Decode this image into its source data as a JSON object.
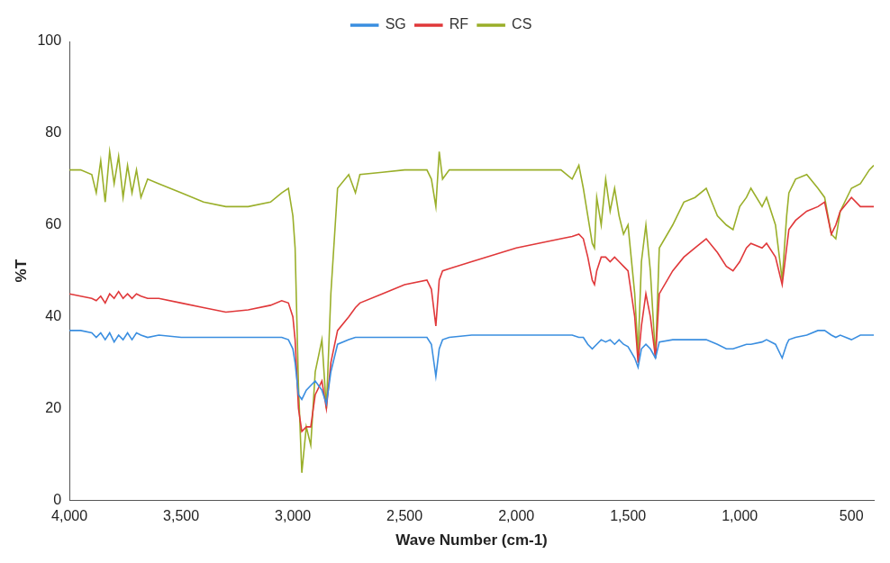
{
  "chart_data": {
    "type": "line",
    "x_label": "Wave Number (cm-1)",
    "y_label": "%T",
    "xlim": [
      4000,
      400
    ],
    "xticks": [
      4000,
      3500,
      3000,
      2500,
      2000,
      1500,
      1000,
      500
    ],
    "ylim": [
      0,
      100
    ],
    "yticks": [
      0,
      20,
      40,
      60,
      80,
      100
    ],
    "grid": false,
    "legend": "top",
    "x": [
      4000,
      3950,
      3900,
      3880,
      3860,
      3840,
      3820,
      3800,
      3780,
      3760,
      3740,
      3720,
      3700,
      3680,
      3650,
      3600,
      3500,
      3400,
      3300,
      3200,
      3100,
      3050,
      3020,
      3000,
      2990,
      2975,
      2960,
      2940,
      2920,
      2900,
      2870,
      2850,
      2830,
      2800,
      2750,
      2720,
      2700,
      2600,
      2500,
      2400,
      2380,
      2360,
      2345,
      2330,
      2300,
      2200,
      2000,
      1800,
      1750,
      1720,
      1700,
      1680,
      1660,
      1650,
      1640,
      1620,
      1600,
      1580,
      1560,
      1540,
      1520,
      1500,
      1470,
      1455,
      1440,
      1420,
      1400,
      1377,
      1360,
      1300,
      1250,
      1200,
      1150,
      1100,
      1060,
      1030,
      1000,
      970,
      950,
      900,
      880,
      840,
      810,
      790,
      780,
      750,
      700,
      650,
      620,
      590,
      570,
      550,
      500,
      460,
      420,
      400
    ],
    "series": [
      {
        "name": "SG",
        "color": "#3a8ee0",
        "values": [
          37,
          37,
          36.5,
          35.5,
          36.5,
          35,
          36.5,
          34.5,
          36,
          35,
          36.5,
          35,
          36.5,
          36,
          35.5,
          36,
          35.5,
          35.5,
          35.5,
          35.5,
          35.5,
          35.5,
          35,
          33,
          30,
          23,
          22,
          24,
          25,
          26,
          24,
          21,
          28,
          34,
          35,
          35.5,
          35.5,
          35.5,
          35.5,
          35.5,
          34,
          27,
          33,
          35,
          35.5,
          36,
          36,
          36,
          36,
          35.5,
          35.5,
          34,
          33,
          33.5,
          34,
          35,
          34.5,
          35,
          34,
          35,
          34,
          33.5,
          31,
          29,
          33,
          34,
          33,
          31,
          34.5,
          35,
          35,
          35,
          35,
          34,
          33,
          33,
          33.5,
          34,
          34,
          34.5,
          35,
          34,
          31,
          34,
          35,
          35.5,
          36,
          37,
          37,
          36,
          35.5,
          36,
          35,
          36,
          36,
          36
        ]
      },
      {
        "name": "RF",
        "color": "#e0383a",
        "values": [
          45,
          44.5,
          44,
          43.5,
          44.5,
          43,
          45,
          44,
          45.5,
          44,
          45,
          44,
          45,
          44.5,
          44,
          44,
          43,
          42,
          41,
          41.5,
          42.5,
          43.5,
          43,
          40,
          35,
          20,
          15,
          16,
          16,
          23,
          26,
          20,
          30,
          37,
          40,
          42,
          43,
          45,
          47,
          48,
          46,
          38,
          48,
          50,
          50.5,
          52,
          55,
          57,
          57.5,
          58,
          57,
          53,
          48,
          47,
          50,
          53,
          53,
          52,
          53,
          52,
          51,
          50,
          40,
          30,
          38,
          45,
          40,
          31,
          45,
          50,
          53,
          55,
          57,
          54,
          51,
          50,
          52,
          55,
          56,
          55,
          56,
          53,
          47,
          55,
          59,
          61,
          63,
          64,
          65,
          58,
          60,
          63,
          66,
          64,
          64,
          64
        ]
      },
      {
        "name": "CS",
        "color": "#9aaf2a",
        "values": [
          72,
          72,
          71,
          67,
          74,
          65,
          76,
          69,
          75,
          66,
          73,
          67,
          72,
          66,
          70,
          69,
          67,
          65,
          64,
          64,
          65,
          67,
          68,
          62,
          55,
          25,
          6,
          16,
          12,
          28,
          35,
          20,
          45,
          68,
          71,
          67,
          71,
          71.5,
          72,
          72,
          70,
          64,
          76,
          70,
          72,
          72,
          72,
          72,
          70,
          73,
          68,
          62,
          56,
          55,
          66,
          60,
          70,
          63,
          68,
          62,
          58,
          60,
          45,
          32,
          52,
          60,
          50,
          31,
          55,
          60,
          65,
          66,
          68,
          62,
          60,
          59,
          64,
          66,
          68,
          64,
          66,
          60,
          48,
          62,
          67,
          70,
          71,
          68,
          66,
          58,
          57,
          63,
          68,
          69,
          72,
          73
        ]
      }
    ]
  }
}
